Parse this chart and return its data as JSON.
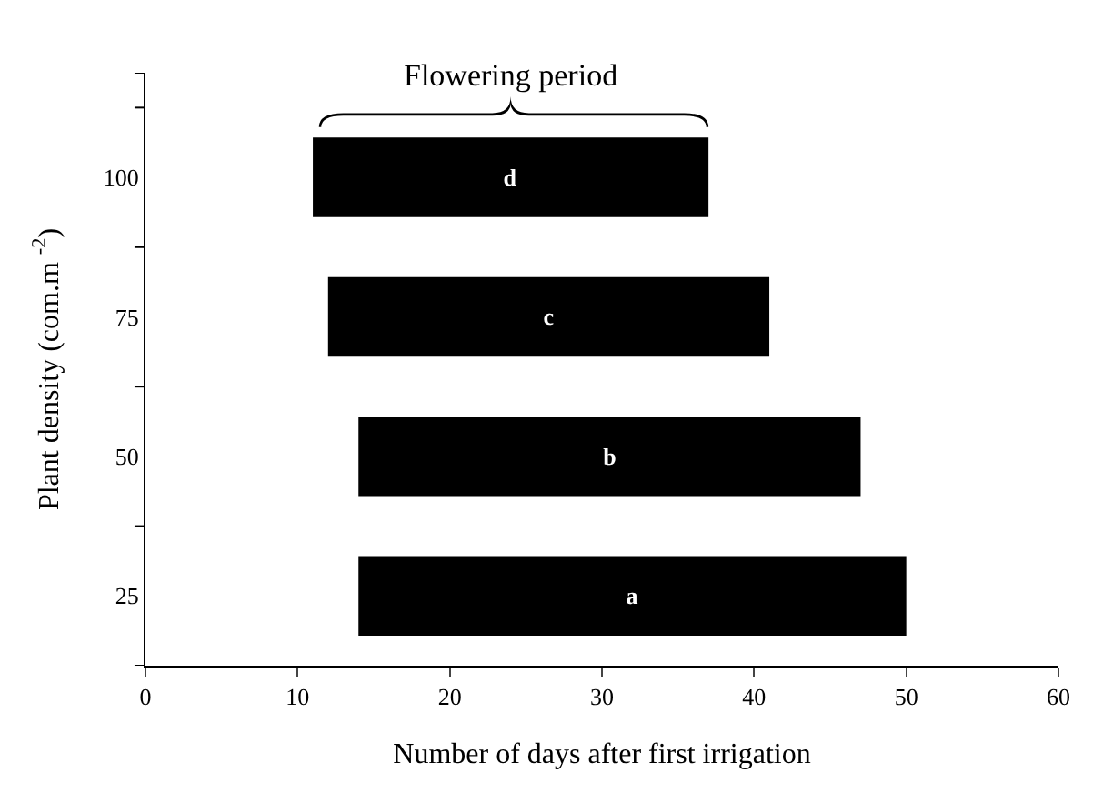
{
  "chart_data": {
    "type": "bar",
    "orientation": "horizontal",
    "categories": [
      "100",
      "75",
      "50",
      "25"
    ],
    "base": [
      11,
      12,
      14,
      14
    ],
    "values": [
      26,
      29,
      33,
      36
    ],
    "value_labels": [
      "d",
      "c",
      "b",
      "a"
    ],
    "color": "#000000",
    "xlabel": "Number of days after first irrigation",
    "ylabel": "Plant density (com.m $^{-2}$)",
    "xlim": [
      0,
      60
    ],
    "xticks": [
      0,
      10,
      20,
      30,
      40,
      50,
      60
    ],
    "annotations": [
      "Flowering period"
    ],
    "legend": false
  }
}
